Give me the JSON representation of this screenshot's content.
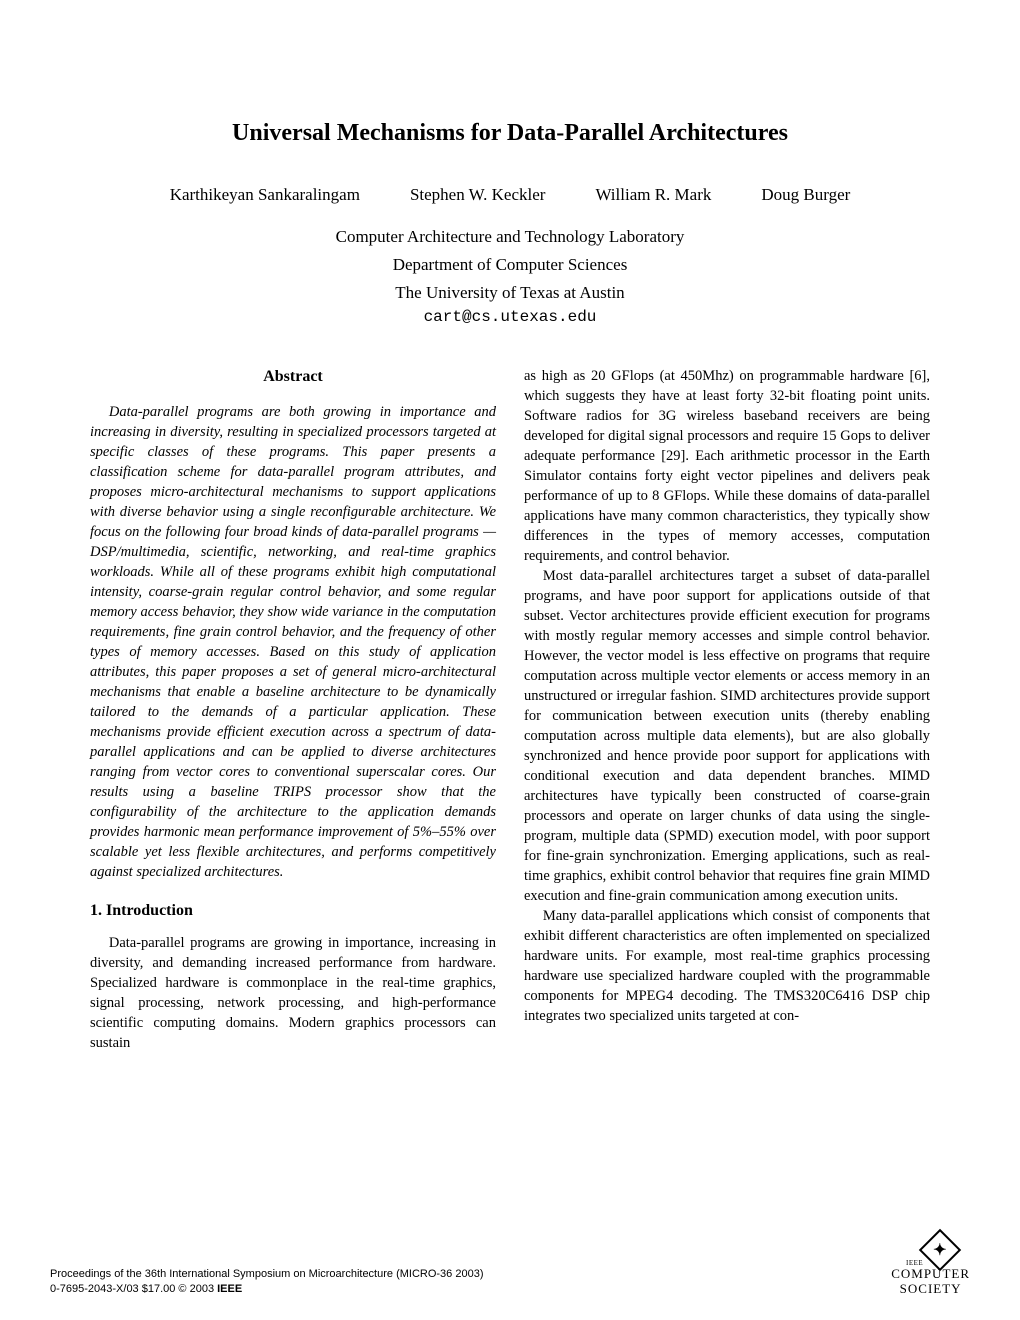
{
  "title": "Universal Mechanisms for Data-Parallel Architectures",
  "authors": [
    "Karthikeyan Sankaralingam",
    "Stephen W. Keckler",
    "William R. Mark",
    "Doug Burger"
  ],
  "affiliation": {
    "lab": "Computer Architecture and Technology Laboratory",
    "dept": "Department of Computer Sciences",
    "univ": "The University of Texas at Austin"
  },
  "email": "cart@cs.utexas.edu",
  "abstract_heading": "Abstract",
  "abstract": "Data-parallel programs are both growing in importance and increasing in diversity, resulting in specialized processors targeted at specific classes of these programs. This paper presents a classification scheme for data-parallel program attributes, and proposes micro-architectural mechanisms to support applications with diverse behavior using a single reconfigurable architecture. We focus on the following four broad kinds of data-parallel programs — DSP/multimedia, scientific, networking, and real-time graphics workloads. While all of these programs exhibit high computational intensity, coarse-grain regular control behavior, and some regular memory access behavior, they show wide variance in the computation requirements, fine grain control behavior, and the frequency of other types of memory accesses. Based on this study of application attributes, this paper proposes a set of general micro-architectural mechanisms that enable a baseline architecture to be dynamically tailored to the demands of a particular application. These mechanisms provide efficient execution across a spectrum of data-parallel applications and can be applied to diverse architectures ranging from vector cores to conventional superscalar cores. Our results using a baseline TRIPS processor show that the configurability of the architecture to the application demands provides harmonic mean performance improvement of 5%–55% over scalable yet less flexible architectures, and performs competitively against specialized architectures.",
  "section1_heading": "1.  Introduction",
  "intro_p1_left": "Data-parallel programs are growing in importance, increasing in diversity, and demanding increased performance from hardware. Specialized hardware is commonplace in the real-time graphics, signal processing, network processing, and high-performance scientific computing domains. Modern graphics processors can sustain",
  "right_p1": "as high as 20 GFlops (at 450Mhz) on programmable hardware [6], which suggests they have at least forty 32-bit floating point units. Software radios for 3G wireless baseband receivers are being developed for digital signal processors and require 15 Gops to deliver adequate performance [29]. Each arithmetic processor in the Earth Simulator contains forty eight vector pipelines and delivers peak performance of up to 8 GFlops. While these domains of data-parallel applications have many common characteristics, they typically show differences in the types of memory accesses, computation requirements, and control behavior.",
  "right_p2": "Most data-parallel architectures target a subset of data-parallel programs, and have poor support for applications outside of that subset. Vector architectures provide efficient execution for programs with mostly regular memory accesses and simple control behavior. However, the vector model is less effective on programs that require computation across multiple vector elements or access memory in an unstructured or irregular fashion. SIMD architectures provide support for communication between execution units (thereby enabling computation across multiple data elements), but are also globally synchronized and hence provide poor support for applications with conditional execution and data dependent branches. MIMD architectures have typically been constructed of coarse-grain processors and operate on larger chunks of data using the single-program, multiple data (SPMD) execution model, with poor support for fine-grain synchronization. Emerging applications, such as real-time graphics, exhibit control behavior that requires fine grain MIMD execution and fine-grain communication among execution units.",
  "right_p3": "Many data-parallel applications which consist of components that exhibit different characteristics are often implemented on specialized hardware units. For example, most real-time graphics processing hardware use specialized hardware coupled with the programmable components for MPEG4 decoding. The TMS320C6416 DSP chip integrates two specialized units targeted at con-",
  "footer": {
    "line1": "Proceedings of the 36th International Symposium on Microarchitecture (MICRO-36 2003)",
    "line2_prefix": "0-7695-2043-X/03 $17.00 © 2003 ",
    "line2_bold": "IEEE",
    "logo_top": "IEEE",
    "logo_line1": "COMPUTER",
    "logo_line2": "SOCIETY"
  }
}
